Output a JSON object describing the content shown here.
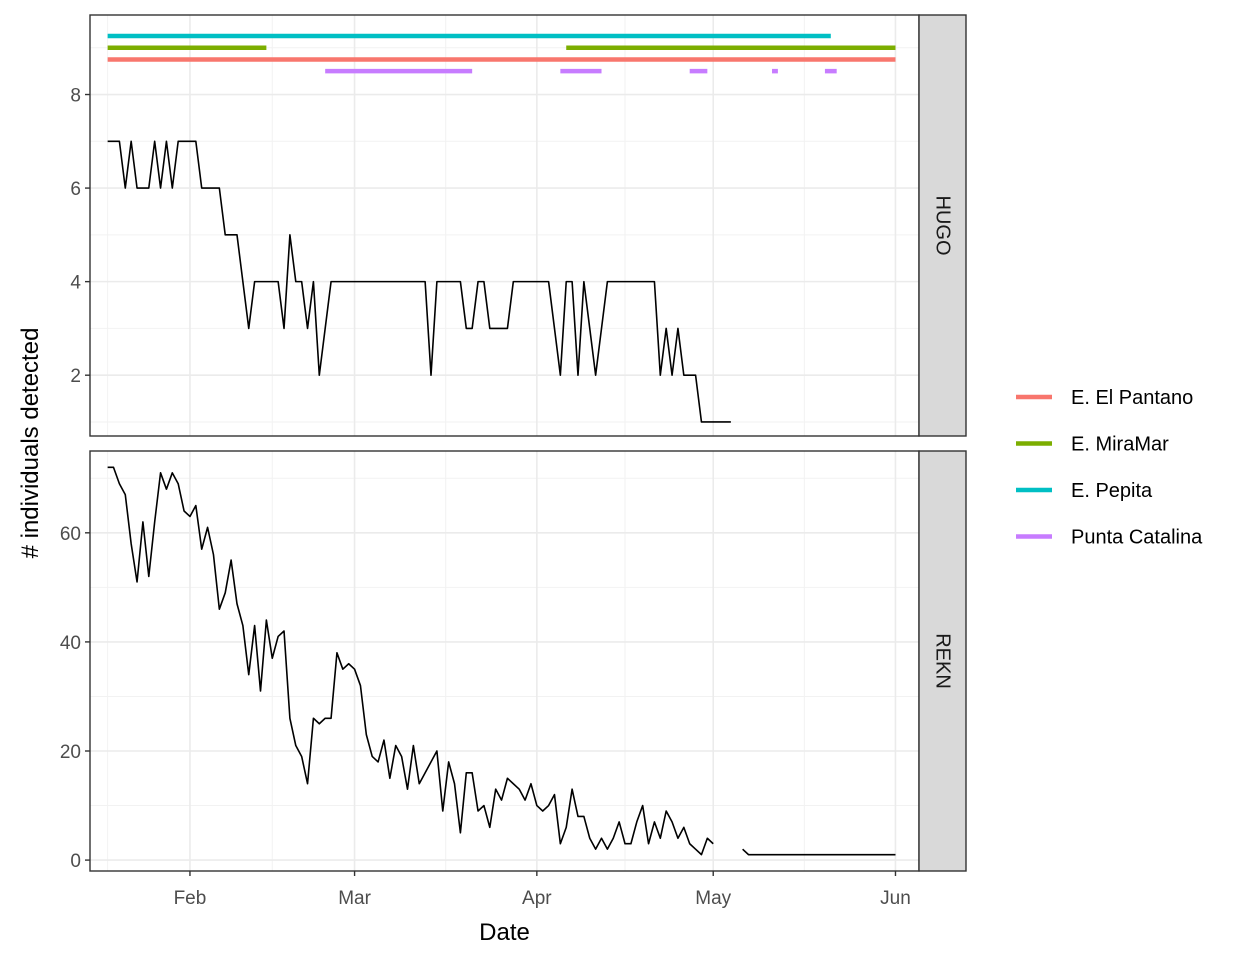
{
  "chart_data": {
    "type": "line",
    "xlabel": "Date",
    "ylabel": "# individuals detected",
    "x_ticks": [
      {
        "label": "Feb",
        "date": "2023-02-01"
      },
      {
        "label": "Mar",
        "date": "2023-03-01"
      },
      {
        "label": "Apr",
        "date": "2023-04-01"
      },
      {
        "label": "May",
        "date": "2023-05-01"
      },
      {
        "label": "Jun",
        "date": "2023-06-01"
      }
    ],
    "xlim": [
      "2023-01-15",
      "2023-06-05"
    ],
    "grid": true,
    "legend_position": "right",
    "legend": [
      {
        "name": "E. El Pantano",
        "color": "#F8766D"
      },
      {
        "name": "E. MiraMar",
        "color": "#7CAE00"
      },
      {
        "name": "E. Pepita",
        "color": "#00BFC4"
      },
      {
        "name": "Punta Catalina",
        "color": "#C77CFF"
      }
    ],
    "panels": [
      {
        "strip": "HUGO",
        "ylim": [
          0.7,
          9.7
        ],
        "y_ticks": [
          2,
          4,
          6,
          8
        ],
        "site_bars": [
          {
            "site": "E. Pepita",
            "y": 9.25,
            "ranges": [
              [
                "2023-01-18",
                "2023-05-21"
              ]
            ]
          },
          {
            "site": "E. MiraMar",
            "y": 9.0,
            "ranges": [
              [
                "2023-01-18",
                "2023-02-14"
              ],
              [
                "2023-04-06",
                "2023-06-01"
              ]
            ]
          },
          {
            "site": "E. El Pantano",
            "y": 8.75,
            "ranges": [
              [
                "2023-01-18",
                "2023-06-01"
              ]
            ]
          },
          {
            "site": "Punta Catalina",
            "y": 8.5,
            "ranges": [
              [
                "2023-02-24",
                "2023-03-21"
              ],
              [
                "2023-04-05",
                "2023-04-12"
              ],
              [
                "2023-04-27",
                "2023-04-30"
              ],
              [
                "2023-05-11",
                "2023-05-12"
              ],
              [
                "2023-05-20",
                "2023-05-22"
              ]
            ]
          }
        ],
        "series": [
          {
            "color": "#000000",
            "segments": [
              [
                [
                  "2023-01-18",
                  7
                ],
                [
                  "2023-01-20",
                  7
                ],
                [
                  "2023-01-21",
                  6
                ],
                [
                  "2023-01-22",
                  7
                ],
                [
                  "2023-01-23",
                  6
                ],
                [
                  "2023-01-25",
                  6
                ],
                [
                  "2023-01-26",
                  7
                ],
                [
                  "2023-01-27",
                  6
                ],
                [
                  "2023-01-28",
                  7
                ],
                [
                  "2023-01-29",
                  6
                ],
                [
                  "2023-01-30",
                  7
                ],
                [
                  "2023-02-02",
                  7
                ],
                [
                  "2023-02-03",
                  6
                ],
                [
                  "2023-02-06",
                  6
                ],
                [
                  "2023-02-07",
                  5
                ],
                [
                  "2023-02-09",
                  5
                ],
                [
                  "2023-02-11",
                  3
                ],
                [
                  "2023-02-12",
                  4
                ],
                [
                  "2023-02-16",
                  4
                ],
                [
                  "2023-02-17",
                  3
                ],
                [
                  "2023-02-18",
                  5
                ],
                [
                  "2023-02-19",
                  4
                ],
                [
                  "2023-02-20",
                  4
                ],
                [
                  "2023-02-21",
                  3
                ],
                [
                  "2023-02-22",
                  4
                ],
                [
                  "2023-02-23",
                  2
                ],
                [
                  "2023-02-24",
                  3
                ],
                [
                  "2023-02-25",
                  4
                ],
                [
                  "2023-03-13",
                  4
                ],
                [
                  "2023-03-14",
                  2
                ],
                [
                  "2023-03-15",
                  4
                ],
                [
                  "2023-03-19",
                  4
                ],
                [
                  "2023-03-20",
                  3
                ],
                [
                  "2023-03-21",
                  3
                ],
                [
                  "2023-03-22",
                  4
                ],
                [
                  "2023-03-23",
                  4
                ],
                [
                  "2023-03-24",
                  3
                ],
                [
                  "2023-03-27",
                  3
                ],
                [
                  "2023-03-28",
                  4
                ],
                [
                  "2023-04-03",
                  4
                ],
                [
                  "2023-04-04",
                  3
                ],
                [
                  "2023-04-05",
                  2
                ],
                [
                  "2023-04-06",
                  4
                ],
                [
                  "2023-04-07",
                  4
                ],
                [
                  "2023-04-08",
                  2
                ],
                [
                  "2023-04-09",
                  4
                ],
                [
                  "2023-04-10",
                  3
                ],
                [
                  "2023-04-11",
                  2
                ],
                [
                  "2023-04-13",
                  4
                ],
                [
                  "2023-04-21",
                  4
                ],
                [
                  "2023-04-22",
                  2
                ],
                [
                  "2023-04-23",
                  3
                ],
                [
                  "2023-04-24",
                  2
                ],
                [
                  "2023-04-25",
                  3
                ],
                [
                  "2023-04-26",
                  2
                ],
                [
                  "2023-04-28",
                  2
                ],
                [
                  "2023-04-29",
                  1
                ],
                [
                  "2023-05-04",
                  1
                ]
              ]
            ]
          }
        ]
      },
      {
        "strip": "REKN",
        "ylim": [
          -2,
          75
        ],
        "y_ticks": [
          0,
          20,
          40,
          60
        ],
        "series": [
          {
            "color": "#000000",
            "segments": [
              [
                [
                  "2023-01-18",
                  72
                ],
                [
                  "2023-01-19",
                  72
                ],
                [
                  "2023-01-20",
                  69
                ],
                [
                  "2023-01-21",
                  67
                ],
                [
                  "2023-01-22",
                  58
                ],
                [
                  "2023-01-23",
                  51
                ],
                [
                  "2023-01-24",
                  62
                ],
                [
                  "2023-01-25",
                  52
                ],
                [
                  "2023-01-26",
                  62
                ],
                [
                  "2023-01-27",
                  71
                ],
                [
                  "2023-01-28",
                  68
                ],
                [
                  "2023-01-29",
                  71
                ],
                [
                  "2023-01-30",
                  69
                ],
                [
                  "2023-01-31",
                  64
                ],
                [
                  "2023-02-01",
                  63
                ],
                [
                  "2023-02-02",
                  65
                ],
                [
                  "2023-02-03",
                  57
                ],
                [
                  "2023-02-04",
                  61
                ],
                [
                  "2023-02-05",
                  56
                ],
                [
                  "2023-02-06",
                  46
                ],
                [
                  "2023-02-07",
                  49
                ],
                [
                  "2023-02-08",
                  55
                ],
                [
                  "2023-02-09",
                  47
                ],
                [
                  "2023-02-10",
                  43
                ],
                [
                  "2023-02-11",
                  34
                ],
                [
                  "2023-02-12",
                  43
                ],
                [
                  "2023-02-13",
                  31
                ],
                [
                  "2023-02-14",
                  44
                ],
                [
                  "2023-02-15",
                  37
                ],
                [
                  "2023-02-16",
                  41
                ],
                [
                  "2023-02-17",
                  42
                ],
                [
                  "2023-02-18",
                  26
                ],
                [
                  "2023-02-19",
                  21
                ],
                [
                  "2023-02-20",
                  19
                ],
                [
                  "2023-02-21",
                  14
                ],
                [
                  "2023-02-22",
                  26
                ],
                [
                  "2023-02-23",
                  25
                ],
                [
                  "2023-02-24",
                  26
                ],
                [
                  "2023-02-25",
                  26
                ],
                [
                  "2023-02-26",
                  38
                ],
                [
                  "2023-02-27",
                  35
                ],
                [
                  "2023-02-28",
                  36
                ],
                [
                  "2023-03-01",
                  35
                ],
                [
                  "2023-03-02",
                  32
                ],
                [
                  "2023-03-03",
                  23
                ],
                [
                  "2023-03-04",
                  19
                ],
                [
                  "2023-03-05",
                  18
                ],
                [
                  "2023-03-06",
                  22
                ],
                [
                  "2023-03-07",
                  15
                ],
                [
                  "2023-03-08",
                  21
                ],
                [
                  "2023-03-09",
                  19
                ],
                [
                  "2023-03-10",
                  13
                ],
                [
                  "2023-03-11",
                  21
                ],
                [
                  "2023-03-12",
                  14
                ],
                [
                  "2023-03-15",
                  20
                ],
                [
                  "2023-03-16",
                  9
                ],
                [
                  "2023-03-17",
                  18
                ],
                [
                  "2023-03-18",
                  14
                ],
                [
                  "2023-03-19",
                  5
                ],
                [
                  "2023-03-20",
                  16
                ],
                [
                  "2023-03-21",
                  16
                ],
                [
                  "2023-03-22",
                  9
                ],
                [
                  "2023-03-23",
                  10
                ],
                [
                  "2023-03-24",
                  6
                ],
                [
                  "2023-03-25",
                  13
                ],
                [
                  "2023-03-26",
                  11
                ],
                [
                  "2023-03-27",
                  15
                ],
                [
                  "2023-03-28",
                  14
                ],
                [
                  "2023-03-29",
                  13
                ],
                [
                  "2023-03-30",
                  11
                ],
                [
                  "2023-03-31",
                  14
                ],
                [
                  "2023-04-01",
                  10
                ],
                [
                  "2023-04-02",
                  9
                ],
                [
                  "2023-04-03",
                  10
                ],
                [
                  "2023-04-04",
                  12
                ],
                [
                  "2023-04-05",
                  3
                ],
                [
                  "2023-04-06",
                  6
                ],
                [
                  "2023-04-07",
                  13
                ],
                [
                  "2023-04-08",
                  8
                ],
                [
                  "2023-04-09",
                  8
                ],
                [
                  "2023-04-10",
                  4
                ],
                [
                  "2023-04-11",
                  2
                ],
                [
                  "2023-04-12",
                  4
                ],
                [
                  "2023-04-13",
                  2
                ],
                [
                  "2023-04-14",
                  4
                ],
                [
                  "2023-04-15",
                  7
                ],
                [
                  "2023-04-16",
                  3
                ],
                [
                  "2023-04-17",
                  3
                ],
                [
                  "2023-04-18",
                  7
                ],
                [
                  "2023-04-19",
                  10
                ],
                [
                  "2023-04-20",
                  3
                ],
                [
                  "2023-04-21",
                  7
                ],
                [
                  "2023-04-22",
                  4
                ],
                [
                  "2023-04-23",
                  9
                ],
                [
                  "2023-04-24",
                  7
                ],
                [
                  "2023-04-25",
                  4
                ],
                [
                  "2023-04-26",
                  6
                ],
                [
                  "2023-04-27",
                  3
                ],
                [
                  "2023-04-28",
                  2
                ],
                [
                  "2023-04-29",
                  1
                ],
                [
                  "2023-04-30",
                  4
                ],
                [
                  "2023-05-01",
                  3
                ]
              ],
              [
                [
                  "2023-05-06",
                  2
                ],
                [
                  "2023-05-07",
                  1
                ],
                [
                  "2023-06-01",
                  1
                ]
              ]
            ]
          }
        ]
      }
    ]
  }
}
